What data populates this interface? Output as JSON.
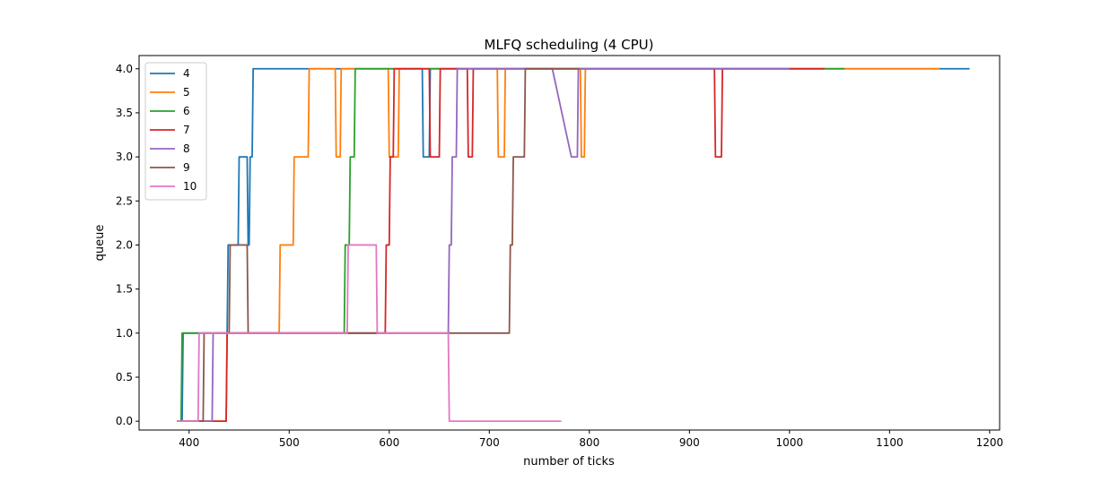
{
  "chart_data": {
    "type": "line",
    "title": "MLFQ scheduling (4 CPU)",
    "xlabel": "number of ticks",
    "ylabel": "queue",
    "xlim": [
      350,
      1210
    ],
    "ylim": [
      -0.1,
      4.15
    ],
    "xticks": [
      400,
      500,
      600,
      700,
      800,
      900,
      1000,
      1100,
      1200
    ],
    "yticks": [
      0.0,
      0.5,
      1.0,
      1.5,
      2.0,
      2.5,
      3.0,
      3.5,
      4.0
    ],
    "ytick_format": 1,
    "grid": false,
    "legend_position": "top-left",
    "series": [
      {
        "name": "4",
        "color": "#1f77b4",
        "points": [
          [
            388,
            0
          ],
          [
            393,
            0
          ],
          [
            394,
            1
          ],
          [
            438,
            1
          ],
          [
            439,
            2
          ],
          [
            449,
            2
          ],
          [
            450,
            3
          ],
          [
            458,
            3
          ],
          [
            459,
            2
          ],
          [
            460,
            2
          ],
          [
            461,
            3
          ],
          [
            463,
            3
          ],
          [
            464,
            4
          ],
          [
            633,
            4
          ],
          [
            634,
            3
          ],
          [
            640,
            3
          ],
          [
            641,
            4
          ],
          [
            1180,
            4
          ]
        ]
      },
      {
        "name": "5",
        "color": "#ff7f0e",
        "points": [
          [
            388,
            0
          ],
          [
            437,
            0
          ],
          [
            438,
            1
          ],
          [
            490,
            1
          ],
          [
            491,
            2
          ],
          [
            504,
            2
          ],
          [
            505,
            3
          ],
          [
            519,
            3
          ],
          [
            520,
            4
          ],
          [
            546,
            4
          ],
          [
            547,
            3
          ],
          [
            551,
            3
          ],
          [
            552,
            4
          ],
          [
            599,
            4
          ],
          [
            600,
            3
          ],
          [
            609,
            3
          ],
          [
            610,
            4
          ],
          [
            708,
            4
          ],
          [
            709,
            3
          ],
          [
            715,
            3
          ],
          [
            716,
            4
          ],
          [
            791,
            4
          ],
          [
            792,
            3
          ],
          [
            795,
            3
          ],
          [
            796,
            4
          ],
          [
            1150,
            4
          ]
        ]
      },
      {
        "name": "6",
        "color": "#2ca02c",
        "points": [
          [
            388,
            0
          ],
          [
            392,
            0
          ],
          [
            393,
            1
          ],
          [
            555,
            1
          ],
          [
            556,
            2
          ],
          [
            560,
            2
          ],
          [
            561,
            3
          ],
          [
            565,
            3
          ],
          [
            566,
            4
          ],
          [
            1055,
            4
          ]
        ]
      },
      {
        "name": "7",
        "color": "#d62728",
        "points": [
          [
            388,
            0
          ],
          [
            437,
            0
          ],
          [
            438,
            1
          ],
          [
            596,
            1
          ],
          [
            597,
            2
          ],
          [
            600,
            2
          ],
          [
            601,
            3
          ],
          [
            604,
            3
          ],
          [
            605,
            4
          ],
          [
            640,
            4
          ],
          [
            641,
            3
          ],
          [
            650,
            3
          ],
          [
            651,
            4
          ],
          [
            678,
            4
          ],
          [
            679,
            3
          ],
          [
            683,
            3
          ],
          [
            684,
            4
          ],
          [
            925,
            4
          ],
          [
            926,
            3
          ],
          [
            932,
            3
          ],
          [
            933,
            4
          ],
          [
            1035,
            4
          ]
        ]
      },
      {
        "name": "8",
        "color": "#9467bd",
        "points": [
          [
            388,
            0
          ],
          [
            423,
            0
          ],
          [
            424,
            1
          ],
          [
            659,
            1
          ],
          [
            660,
            2
          ],
          [
            662,
            2
          ],
          [
            663,
            3
          ],
          [
            667,
            3
          ],
          [
            668,
            4
          ],
          [
            763,
            4
          ],
          [
            782,
            3
          ],
          [
            788,
            3
          ],
          [
            789,
            4
          ],
          [
            1000,
            4
          ]
        ]
      },
      {
        "name": "9",
        "color": "#8c564b",
        "points": [
          [
            388,
            0
          ],
          [
            414,
            0
          ],
          [
            415,
            1
          ],
          [
            440,
            1
          ],
          [
            441,
            2
          ],
          [
            458,
            2
          ],
          [
            459,
            1
          ],
          [
            720,
            1
          ],
          [
            721,
            2
          ],
          [
            723,
            2
          ],
          [
            724,
            3
          ],
          [
            735,
            3
          ],
          [
            736,
            4
          ],
          [
            790,
            4
          ]
        ]
      },
      {
        "name": "10",
        "color": "#e377c2",
        "points": [
          [
            388,
            0
          ],
          [
            409,
            0
          ],
          [
            410,
            1
          ],
          [
            558,
            1
          ],
          [
            559,
            2
          ],
          [
            587,
            2
          ],
          [
            588,
            1
          ],
          [
            659,
            1
          ],
          [
            660,
            0
          ],
          [
            772,
            0
          ]
        ]
      }
    ]
  }
}
